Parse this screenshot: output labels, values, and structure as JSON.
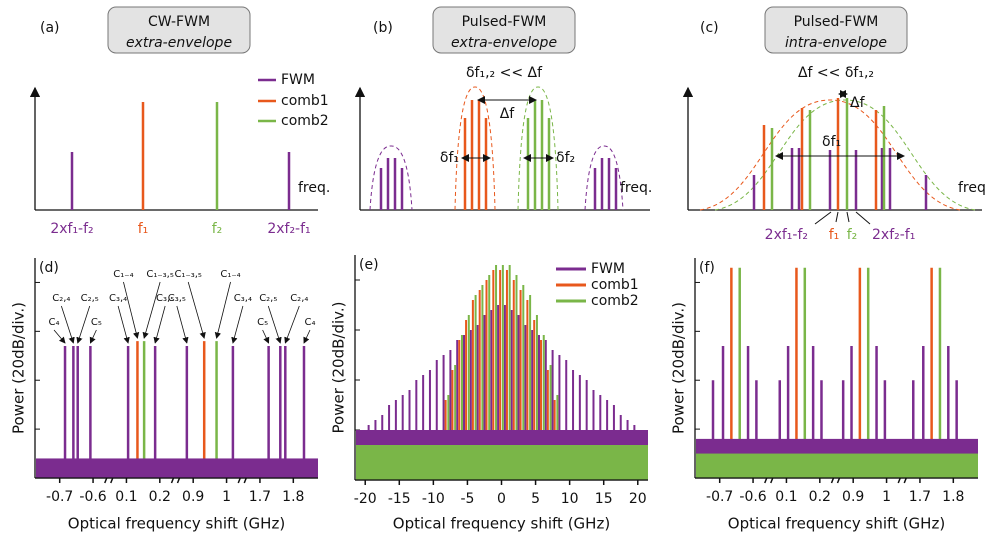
{
  "schematics": [
    {
      "panel": "(a)",
      "title": "CW-FWM",
      "subtitle": "extra-envelope",
      "legend": [
        "FWM",
        "comb1",
        "comb2"
      ],
      "axis_label": "freq.",
      "labels": [
        "2xf₁-f₂",
        "f₁",
        "f₂",
        "2xf₂-f₁"
      ]
    },
    {
      "panel": "(b)",
      "title": "Pulsed-FWM",
      "subtitle": "extra-envelope",
      "condition": "δf₁,₂ << Δf",
      "annotations": [
        "Δf",
        "δf₁",
        "δf₂"
      ],
      "axis_label": "freq."
    },
    {
      "panel": "(c)",
      "title": "Pulsed-FWM",
      "subtitle": "intra-envelope",
      "condition": "Δf << δf₁,₂",
      "annotations": [
        "Δf",
        "δf₁"
      ],
      "axis_label": "freq",
      "labels": [
        "2xf₁-f₂",
        "f₁",
        "f₂",
        "2xf₂-f₁"
      ]
    }
  ],
  "chart_data": [
    {
      "type": "spectrum",
      "panel": "(d)",
      "ylabel": "Power (20dB/div.)",
      "xlabel": "Optical frequency shift (GHz)",
      "xlims": [
        [
          -0.75,
          -0.55
        ],
        [
          0.05,
          0.25
        ],
        [
          0.85,
          1.05
        ],
        [
          1.65,
          1.85
        ]
      ],
      "xticks": [
        -0.7,
        -0.6,
        0.1,
        0.2,
        0.9,
        1,
        1.7,
        1.8
      ],
      "ylim": [
        0,
        4.5
      ],
      "yticks": [
        1,
        2,
        3,
        4
      ],
      "series": [
        {
          "color": "#7b2c8f",
          "noise_floor": 0.4,
          "x": [
            -0.684,
            -0.659,
            -0.646,
            -0.608,
            0.105,
            0.186,
            0.881,
            1.019,
            1.726,
            1.761,
            1.776,
            1.832
          ],
          "values": [
            2.7,
            2.7,
            2.7,
            2.7,
            2.7,
            2.7,
            2.7,
            2.7,
            2.7,
            2.7,
            2.7,
            2.7
          ]
        },
        {
          "color": "#e8581c",
          "x": [
            0.133,
            0.933
          ],
          "values": [
            2.8,
            2.8
          ]
        },
        {
          "color": "#7ab648",
          "x": [
            0.153,
            0.97
          ],
          "values": [
            2.8,
            2.8
          ]
        }
      ],
      "annotations": [
        "C₄",
        "C₂,₄",
        "C₂,₅",
        "C₅",
        "C₁₋₄",
        "C₁₋₃,₅",
        "C₃,₄",
        "C₃,₅",
        "C₁₋₃,₅",
        "C₁₋₄",
        "C₃,₅",
        "C₃,₄",
        "C₅",
        "C₂,₅",
        "C₂,₄",
        "C₄"
      ]
    },
    {
      "type": "spectrum",
      "panel": "(e)",
      "ylabel": "Power (20dB/div.)",
      "xlabel": "Optical frequency shift (GHz)",
      "xlim": [
        -21.5,
        21.5
      ],
      "xticks": [
        -20,
        -15,
        -10,
        -5,
        0,
        5,
        10,
        15,
        20
      ],
      "ylim": [
        0,
        4.5
      ],
      "yticks": [
        1,
        2,
        3,
        4
      ],
      "series": [
        {
          "name": "FWM",
          "color": "#7b2c8f",
          "noise_floor": 1.0,
          "x": [
            -19.5,
            -18.5,
            -17.5,
            -16.5,
            -15.5,
            -14.5,
            -13.5,
            -12.5,
            -11.5,
            -10.5,
            -9.5,
            -8.5,
            -7.5,
            -6.5,
            -5.5,
            -4.5,
            -3.5,
            -2.5,
            -1.5,
            -0.5,
            0.5,
            1.5,
            2.5,
            3.5,
            4.5,
            5.5,
            6.5,
            7.5,
            8.5,
            9.5,
            10.5,
            11.5,
            12.5,
            13.5,
            14.5,
            15.5,
            16.5,
            17.5,
            18.5,
            19.5
          ],
          "values": [
            1.1,
            1.2,
            1.3,
            1.5,
            1.6,
            1.7,
            1.8,
            2.0,
            2.1,
            2.2,
            2.4,
            2.5,
            2.6,
            2.8,
            2.9,
            3.0,
            3.1,
            3.3,
            3.4,
            3.5,
            3.5,
            3.4,
            3.3,
            3.1,
            3.0,
            2.9,
            2.8,
            2.6,
            2.5,
            2.4,
            2.2,
            2.1,
            2.0,
            1.8,
            1.7,
            1.6,
            1.5,
            1.3,
            1.2,
            1.1
          ]
        },
        {
          "name": "comb1",
          "color": "#e8581c",
          "x": [
            -8.2,
            -7.2,
            -6.2,
            -5.2,
            -4.2,
            -3.2,
            -2.2,
            -1.2,
            -0.2,
            0.8,
            1.8,
            2.8,
            3.8,
            4.8,
            5.8,
            6.8,
            7.8
          ],
          "values": [
            1.6,
            2.2,
            2.8,
            3.2,
            3.6,
            3.8,
            4.0,
            4.2,
            4.2,
            4.2,
            4.0,
            3.8,
            3.6,
            3.2,
            2.8,
            2.2,
            1.6
          ]
        },
        {
          "name": "comb2",
          "color": "#7ab648",
          "noise_floor": 0.7,
          "x": [
            -7.8,
            -6.8,
            -5.8,
            -4.8,
            -3.8,
            -2.8,
            -1.8,
            -0.8,
            0.2,
            1.2,
            2.2,
            3.2,
            4.2,
            5.2,
            6.2,
            7.2,
            8.2
          ],
          "values": [
            1.7,
            2.3,
            2.9,
            3.3,
            3.7,
            3.9,
            4.1,
            4.3,
            4.3,
            4.3,
            4.1,
            3.9,
            3.7,
            3.3,
            2.9,
            2.3,
            1.7
          ]
        }
      ]
    },
    {
      "type": "spectrum",
      "panel": "(f)",
      "ylabel": "Power (20dB/div.)",
      "xlabel": "Optical frequency shift (GHz)",
      "xlims": [
        [
          -0.75,
          -0.55
        ],
        [
          0.05,
          0.25
        ],
        [
          0.85,
          1.05
        ],
        [
          1.65,
          1.85
        ]
      ],
      "xticks": [
        -0.7,
        -0.6,
        0.1,
        0.2,
        0.9,
        1,
        1.7,
        1.8
      ],
      "ylim": [
        0,
        4.5
      ],
      "yticks": [
        1,
        2,
        3,
        4
      ],
      "series": [
        {
          "color": "#7b2c8f",
          "noise_floor": 0.8,
          "x": [
            -0.72,
            -0.69,
            -0.615,
            -0.59,
            0.08,
            0.105,
            0.18,
            0.205,
            0.87,
            0.895,
            0.97,
            0.995,
            1.68,
            1.71,
            1.785,
            1.81
          ],
          "values": [
            2.0,
            2.7,
            2.7,
            2.0,
            2.0,
            2.7,
            2.7,
            2.0,
            2.0,
            2.7,
            2.7,
            2.0,
            2.0,
            2.7,
            2.7,
            2.0
          ]
        },
        {
          "color": "#e8581c",
          "x": [
            -0.665,
            0.13,
            0.92,
            1.735
          ],
          "values": [
            4.3,
            4.3,
            4.3,
            4.3
          ]
        },
        {
          "color": "#7ab648",
          "noise_floor": 0.5,
          "x": [
            -0.64,
            0.155,
            0.945,
            1.76
          ],
          "values": [
            4.3,
            4.3,
            4.3,
            4.3
          ]
        }
      ]
    }
  ]
}
